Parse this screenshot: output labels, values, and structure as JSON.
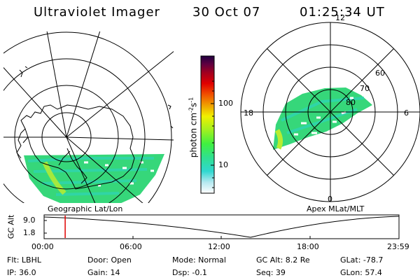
{
  "header": {
    "instrument": "Ultraviolet Imager",
    "date": "30 Oct 07",
    "time": "01:25:34 UT"
  },
  "geo_map": {
    "label": "Geographic Lat/Lon"
  },
  "polar_map": {
    "label": "Apex MLat/MLT",
    "mlt_labels": [
      "12",
      "18",
      "6",
      "0"
    ],
    "lat_labels": [
      "60",
      "70",
      "80"
    ]
  },
  "colorbar": {
    "unit_label": "photon cm",
    "unit_exp1": "-2",
    "unit_mid": "s",
    "unit_exp2": "-1",
    "tick_labels": [
      "100",
      "10"
    ],
    "colors": [
      "#ffffff",
      "#b4e8f0",
      "#30d8d0",
      "#30e090",
      "#40f040",
      "#a0f020",
      "#f0f000",
      "#f0a000",
      "#f05000",
      "#e00000",
      "#a00020",
      "#600040",
      "#200040"
    ]
  },
  "altitude_plot": {
    "ylabel": "GC Alt",
    "y_ticks": [
      "9.0",
      "1.8"
    ],
    "x_ticks": [
      "00:00",
      "06:00",
      "12:00",
      "18:00",
      "23:59"
    ],
    "marker_time": "01:25:34",
    "marker_color": "#e00000"
  },
  "status": {
    "flt": "Flt: LBHL",
    "ip": "IP: 36.0",
    "door": "Door: Open",
    "gain": "Gain: 14",
    "mode": "Mode: Normal",
    "dsp": "Dsp:  -0.1",
    "gc_alt": "GC Alt: 8.2 Re",
    "seq": "Seq: 39",
    "glat": "GLat: -78.7",
    "glon": "GLon:  57.4"
  }
}
